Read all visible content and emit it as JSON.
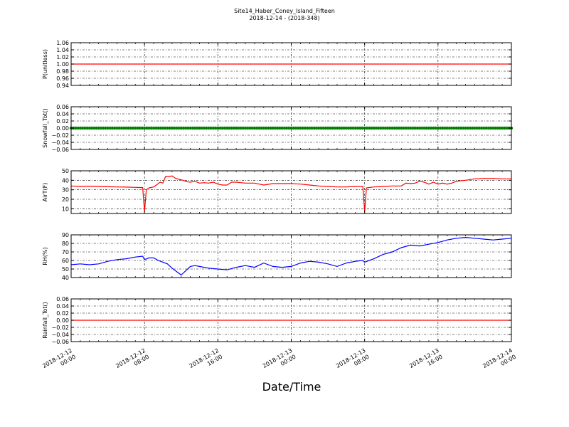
{
  "title_line1": "Site14_Haber_Coney_Island_Fifteen",
  "title_line2": "2018-12-14 - (2018-348)",
  "xlabel": "Date/Time",
  "x_ticks": [
    {
      "l1": "2018-12-12",
      "l2": "00:00"
    },
    {
      "l1": "2018-12-12",
      "l2": "08:00"
    },
    {
      "l1": "2018-12-12",
      "l2": "16:00"
    },
    {
      "l1": "2018-12-13",
      "l2": "00:00"
    },
    {
      "l1": "2018-12-13",
      "l2": "08:00"
    },
    {
      "l1": "2018-12-13",
      "l2": "16:00"
    },
    {
      "l1": "2018-12-14",
      "l2": "00:00"
    }
  ],
  "chart_data": [
    {
      "type": "line",
      "ylabel": "P(unitless)",
      "ylim": [
        0.94,
        1.06
      ],
      "yticks": [
        "0.94",
        "0.96",
        "0.98",
        "1.00",
        "1.02",
        "1.04",
        "1.06"
      ],
      "grid": true,
      "color": "#ff0000",
      "x_hours": [
        0,
        48
      ],
      "values": [
        1.0,
        1.0
      ]
    },
    {
      "type": "scatter",
      "ylabel": "Snowfall_Tot()",
      "ylim": [
        -0.06,
        0.06
      ],
      "yticks": [
        "−0.06",
        "−0.04",
        "−0.02",
        "0.00",
        "0.02",
        "0.04",
        "0.06"
      ],
      "grid": true,
      "color": "#008000",
      "x_hours": [
        0,
        48
      ],
      "values": [
        0.0,
        0.0
      ]
    },
    {
      "type": "line",
      "ylabel": "AirT(F)",
      "ylim": [
        5,
        50
      ],
      "yticks": [
        "10",
        "20",
        "30",
        "40",
        "50"
      ],
      "grid": true,
      "color": "#ff0000",
      "x_hours": [
        0,
        1,
        2,
        3,
        4,
        5,
        6,
        7,
        7.8,
        8.0,
        8.2,
        8.5,
        9.0,
        9.3,
        9.7,
        10.0,
        10.3,
        10.6,
        11.0,
        11.4,
        11.8,
        12.2,
        12.6,
        13.0,
        13.5,
        14.0,
        14.5,
        15.0,
        15.5,
        16.0,
        16.5,
        17.0,
        17.5,
        18.0,
        18.5,
        19.0,
        20.0,
        21.0,
        22.0,
        23.0,
        24.0,
        25.0,
        26.0,
        27.0,
        28.0,
        29.0,
        30.0,
        31.0,
        31.8,
        32.0,
        32.2,
        33.0,
        34.0,
        35.0,
        36.0,
        36.5,
        37.0,
        37.5,
        38.0,
        38.5,
        39.0,
        39.5,
        40.0,
        40.5,
        41.0,
        41.5,
        42.0,
        43.0,
        44.0,
        45.0,
        46.0,
        47.0,
        48.0
      ],
      "values": [
        34,
        33.5,
        33.8,
        33.5,
        33.2,
        33.0,
        32.8,
        32.5,
        32.3,
        7,
        30,
        32,
        33,
        35,
        38,
        37,
        44,
        44,
        44.5,
        42,
        41,
        40,
        38.5,
        38,
        39,
        37,
        37.5,
        37,
        38,
        36,
        35,
        35,
        38,
        38,
        37.5,
        37,
        37,
        35,
        36.5,
        36.5,
        36.5,
        36,
        35,
        34,
        33.5,
        33,
        33,
        33.5,
        33.5,
        7,
        32,
        33,
        33.5,
        34,
        34,
        37,
        36.5,
        37,
        39,
        38,
        36,
        38,
        36,
        37,
        36,
        37,
        39,
        40,
        41.5,
        42,
        42,
        41.5,
        41.5
      ]
    },
    {
      "type": "line",
      "ylabel": "RH(%)",
      "ylim": [
        40,
        90
      ],
      "yticks": [
        "40",
        "50",
        "60",
        "70",
        "80",
        "90"
      ],
      "grid": true,
      "color": "#0000ff",
      "x_hours": [
        0,
        1,
        2,
        3,
        4,
        5,
        6,
        7,
        7.8,
        8.0,
        8.5,
        9.0,
        9.5,
        10.0,
        10.5,
        11.0,
        11.5,
        12.0,
        12.5,
        13.0,
        13.5,
        14.0,
        15.0,
        16.0,
        17.0,
        18.0,
        19.0,
        20.0,
        21.0,
        22.0,
        23.0,
        24.0,
        25.0,
        26.0,
        27.0,
        28.0,
        29.0,
        30.0,
        31.0,
        31.8,
        32.0,
        33.0,
        34.0,
        35.0,
        36.0,
        37.0,
        38.0,
        39.0,
        40.0,
        41.0,
        42.0,
        43.0,
        44.0,
        45.0,
        46.0,
        47.0,
        48.0
      ],
      "values": [
        55,
        56,
        55,
        56,
        59,
        61,
        62,
        64,
        65,
        61,
        63,
        63,
        60,
        58,
        56,
        51,
        47,
        43,
        48,
        53,
        54,
        53,
        51,
        50,
        49,
        52,
        54,
        52,
        57,
        53,
        52,
        53,
        57,
        59,
        58,
        56,
        53,
        57,
        59,
        60,
        58,
        62,
        67,
        70,
        75,
        78,
        77,
        79,
        81,
        84,
        86,
        87,
        86,
        85,
        84,
        85,
        86
      ]
    },
    {
      "type": "line",
      "ylabel": "Rainfall_Tot()",
      "ylim": [
        -0.06,
        0.06
      ],
      "yticks": [
        "−0.06",
        "−0.04",
        "−0.02",
        "0.00",
        "0.02",
        "0.04",
        "0.06"
      ],
      "grid": true,
      "color": "#ff0000",
      "x_hours": [
        0,
        48
      ],
      "values": [
        0.0,
        0.0
      ]
    }
  ]
}
